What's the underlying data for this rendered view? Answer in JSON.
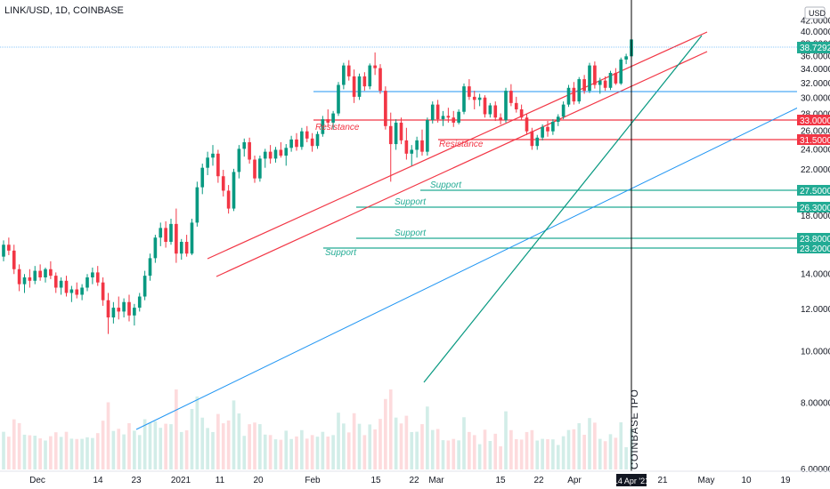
{
  "chart_data": {
    "type": "candlestick",
    "symbol": "LINK/USD, 1D, COINBASE",
    "currency_badge": "USD",
    "y_scale": "log",
    "ylim": [
      5.8,
      42.0
    ],
    "y_ticks": [
      "42.00000",
      "40.00000",
      "38.00000",
      "36.00000",
      "34.00000",
      "32.00000",
      "30.00000",
      "28.00000",
      "26.00000",
      "24.00000",
      "22.00000",
      "20.00000",
      "18.00000",
      "16.00000",
      "14.00000",
      "12.00000",
      "10.00000",
      "8.00000",
      "6.00000"
    ],
    "x_ticks": [
      "Dec",
      "14",
      "23",
      "2021",
      "11",
      "20",
      "Feb",
      "15",
      "22",
      "Mar",
      "15",
      "22",
      "Apr",
      "14 Apr '21",
      "21",
      "May",
      "10",
      "19"
    ],
    "current_price": "38.72925",
    "levels": [
      {
        "label": "33.00000",
        "color": "#f23645",
        "kind": "resistance"
      },
      {
        "label": "31.50000",
        "color": "#f23645",
        "kind": "resistance"
      },
      {
        "label": "27.50000",
        "color": "#22ab94",
        "kind": "support"
      },
      {
        "label": "26.30000",
        "color": "#22ab94",
        "kind": "support"
      },
      {
        "label": "23.80000",
        "color": "#22ab94",
        "kind": "support"
      },
      {
        "label": "23.20000",
        "color": "#22ab94",
        "kind": "support"
      }
    ],
    "annotations": [
      {
        "text": "Resistance",
        "color": "#f23645"
      },
      {
        "text": "Resistance",
        "color": "#f23645"
      },
      {
        "text": "Support",
        "color": "#22ab94"
      },
      {
        "text": "Support",
        "color": "#22ab94"
      },
      {
        "text": "Support",
        "color": "#22ab94"
      },
      {
        "text": "Support",
        "color": "#22ab94"
      }
    ],
    "event_label": "COINBASE IPO",
    "candles": [
      {
        "o": 15.1,
        "h": 16.2,
        "l": 14.8,
        "c": 15.9
      },
      {
        "o": 15.9,
        "h": 16.4,
        "l": 15.2,
        "c": 15.5
      },
      {
        "o": 15.5,
        "h": 15.9,
        "l": 14.0,
        "c": 14.3
      },
      {
        "o": 14.3,
        "h": 14.6,
        "l": 13.0,
        "c": 13.4
      },
      {
        "o": 13.4,
        "h": 14.0,
        "l": 12.9,
        "c": 13.8
      },
      {
        "o": 13.8,
        "h": 14.3,
        "l": 13.2,
        "c": 13.6
      },
      {
        "o": 13.6,
        "h": 14.5,
        "l": 13.4,
        "c": 14.2
      },
      {
        "o": 14.2,
        "h": 14.6,
        "l": 13.6,
        "c": 13.8
      },
      {
        "o": 13.8,
        "h": 14.4,
        "l": 13.5,
        "c": 14.3
      },
      {
        "o": 14.3,
        "h": 14.8,
        "l": 13.7,
        "c": 13.9
      },
      {
        "o": 13.9,
        "h": 14.1,
        "l": 12.9,
        "c": 13.2
      },
      {
        "o": 13.2,
        "h": 13.8,
        "l": 12.8,
        "c": 13.6
      },
      {
        "o": 13.6,
        "h": 13.9,
        "l": 12.7,
        "c": 12.9
      },
      {
        "o": 12.9,
        "h": 13.3,
        "l": 12.4,
        "c": 13.1
      },
      {
        "o": 13.1,
        "h": 13.5,
        "l": 12.6,
        "c": 12.8
      },
      {
        "o": 12.8,
        "h": 13.4,
        "l": 12.5,
        "c": 13.2
      },
      {
        "o": 13.2,
        "h": 14.0,
        "l": 13.0,
        "c": 13.8
      },
      {
        "o": 13.8,
        "h": 14.4,
        "l": 13.4,
        "c": 14.1
      },
      {
        "o": 14.1,
        "h": 14.5,
        "l": 13.3,
        "c": 13.5
      },
      {
        "o": 13.5,
        "h": 13.8,
        "l": 12.2,
        "c": 12.5
      },
      {
        "o": 12.5,
        "h": 12.9,
        "l": 10.8,
        "c": 11.6
      },
      {
        "o": 11.6,
        "h": 12.4,
        "l": 11.3,
        "c": 12.1
      },
      {
        "o": 12.1,
        "h": 12.7,
        "l": 11.5,
        "c": 11.9
      },
      {
        "o": 11.9,
        "h": 12.6,
        "l": 11.6,
        "c": 12.4
      },
      {
        "o": 12.4,
        "h": 12.8,
        "l": 11.4,
        "c": 11.7
      },
      {
        "o": 11.7,
        "h": 12.3,
        "l": 11.2,
        "c": 12.1
      },
      {
        "o": 12.1,
        "h": 12.9,
        "l": 11.9,
        "c": 12.7
      },
      {
        "o": 12.7,
        "h": 14.2,
        "l": 12.5,
        "c": 13.9
      },
      {
        "o": 13.9,
        "h": 15.3,
        "l": 13.6,
        "c": 15.0
      },
      {
        "o": 15.0,
        "h": 16.6,
        "l": 14.7,
        "c": 16.4
      },
      {
        "o": 16.4,
        "h": 17.5,
        "l": 15.8,
        "c": 17.1
      },
      {
        "o": 17.1,
        "h": 17.6,
        "l": 15.7,
        "c": 16.1
      },
      {
        "o": 16.1,
        "h": 17.8,
        "l": 15.9,
        "c": 17.4
      },
      {
        "o": 17.4,
        "h": 18.6,
        "l": 14.7,
        "c": 15.3
      },
      {
        "o": 15.3,
        "h": 16.3,
        "l": 14.9,
        "c": 16.1
      },
      {
        "o": 16.1,
        "h": 16.6,
        "l": 15.1,
        "c": 15.3
      },
      {
        "o": 15.3,
        "h": 17.8,
        "l": 15.2,
        "c": 17.5
      },
      {
        "o": 17.5,
        "h": 20.9,
        "l": 17.2,
        "c": 20.4
      },
      {
        "o": 20.4,
        "h": 22.6,
        "l": 19.8,
        "c": 22.2
      },
      {
        "o": 22.2,
        "h": 23.8,
        "l": 21.5,
        "c": 23.2
      },
      {
        "o": 23.2,
        "h": 24.5,
        "l": 22.4,
        "c": 23.6
      },
      {
        "o": 23.6,
        "h": 24.0,
        "l": 20.8,
        "c": 21.4
      },
      {
        "o": 21.4,
        "h": 22.0,
        "l": 19.6,
        "c": 20.1
      },
      {
        "o": 20.1,
        "h": 20.6,
        "l": 18.2,
        "c": 18.6
      },
      {
        "o": 18.6,
        "h": 22.1,
        "l": 18.4,
        "c": 21.8
      },
      {
        "o": 21.8,
        "h": 24.5,
        "l": 21.2,
        "c": 24.1
      },
      {
        "o": 24.1,
        "h": 25.2,
        "l": 23.3,
        "c": 24.8
      },
      {
        "o": 24.8,
        "h": 25.3,
        "l": 22.6,
        "c": 23.0
      },
      {
        "o": 23.0,
        "h": 23.4,
        "l": 20.8,
        "c": 21.2
      },
      {
        "o": 21.2,
        "h": 23.4,
        "l": 20.9,
        "c": 23.1
      },
      {
        "o": 23.1,
        "h": 24.1,
        "l": 22.2,
        "c": 23.8
      },
      {
        "o": 23.8,
        "h": 24.5,
        "l": 22.6,
        "c": 23.1
      },
      {
        "o": 23.1,
        "h": 24.3,
        "l": 22.7,
        "c": 24.0
      },
      {
        "o": 24.0,
        "h": 24.8,
        "l": 23.2,
        "c": 23.4
      },
      {
        "o": 23.4,
        "h": 24.6,
        "l": 22.4,
        "c": 24.2
      },
      {
        "o": 24.2,
        "h": 25.5,
        "l": 23.8,
        "c": 25.1
      },
      {
        "o": 25.1,
        "h": 25.8,
        "l": 23.9,
        "c": 24.3
      },
      {
        "o": 24.3,
        "h": 26.4,
        "l": 24.0,
        "c": 26.0
      },
      {
        "o": 26.0,
        "h": 26.6,
        "l": 24.8,
        "c": 25.2
      },
      {
        "o": 25.2,
        "h": 25.8,
        "l": 23.8,
        "c": 24.4
      },
      {
        "o": 24.4,
        "h": 26.0,
        "l": 24.1,
        "c": 25.7
      },
      {
        "o": 25.7,
        "h": 27.8,
        "l": 25.4,
        "c": 27.4
      },
      {
        "o": 27.4,
        "h": 28.6,
        "l": 26.5,
        "c": 27.0
      },
      {
        "o": 27.0,
        "h": 28.4,
        "l": 26.2,
        "c": 28.1
      },
      {
        "o": 28.1,
        "h": 32.2,
        "l": 27.8,
        "c": 31.8
      },
      {
        "o": 31.8,
        "h": 35.0,
        "l": 31.2,
        "c": 34.6
      },
      {
        "o": 34.6,
        "h": 35.4,
        "l": 32.4,
        "c": 33.0
      },
      {
        "o": 33.0,
        "h": 34.0,
        "l": 29.4,
        "c": 30.2
      },
      {
        "o": 30.2,
        "h": 33.4,
        "l": 29.8,
        "c": 33.0
      },
      {
        "o": 33.0,
        "h": 33.6,
        "l": 31.0,
        "c": 31.6
      },
      {
        "o": 31.6,
        "h": 34.9,
        "l": 31.2,
        "c": 34.6
      },
      {
        "o": 34.6,
        "h": 36.6,
        "l": 33.2,
        "c": 34.2
      },
      {
        "o": 34.2,
        "h": 34.8,
        "l": 30.6,
        "c": 31.0
      },
      {
        "o": 31.0,
        "h": 31.6,
        "l": 26.2,
        "c": 26.6
      },
      {
        "o": 26.6,
        "h": 28.2,
        "l": 20.9,
        "c": 24.6
      },
      {
        "o": 24.6,
        "h": 27.4,
        "l": 24.0,
        "c": 27.0
      },
      {
        "o": 27.0,
        "h": 27.6,
        "l": 24.6,
        "c": 25.0
      },
      {
        "o": 25.0,
        "h": 26.4,
        "l": 23.0,
        "c": 23.6
      },
      {
        "o": 23.6,
        "h": 24.5,
        "l": 22.4,
        "c": 24.0
      },
      {
        "o": 24.0,
        "h": 25.4,
        "l": 23.2,
        "c": 25.0
      },
      {
        "o": 25.0,
        "h": 26.2,
        "l": 23.4,
        "c": 23.8
      },
      {
        "o": 23.8,
        "h": 27.6,
        "l": 23.4,
        "c": 27.3
      },
      {
        "o": 27.3,
        "h": 29.6,
        "l": 26.9,
        "c": 29.2
      },
      {
        "o": 29.2,
        "h": 29.8,
        "l": 27.0,
        "c": 27.4
      },
      {
        "o": 27.4,
        "h": 28.4,
        "l": 26.6,
        "c": 27.8
      },
      {
        "o": 27.8,
        "h": 28.8,
        "l": 27.0,
        "c": 27.6
      },
      {
        "o": 27.6,
        "h": 28.4,
        "l": 26.5,
        "c": 27.0
      },
      {
        "o": 27.0,
        "h": 28.6,
        "l": 26.8,
        "c": 28.3
      },
      {
        "o": 28.3,
        "h": 32.0,
        "l": 28.0,
        "c": 31.6
      },
      {
        "o": 31.6,
        "h": 32.6,
        "l": 29.8,
        "c": 30.2
      },
      {
        "o": 30.2,
        "h": 31.0,
        "l": 28.6,
        "c": 29.8
      },
      {
        "o": 29.8,
        "h": 30.6,
        "l": 29.0,
        "c": 30.1
      },
      {
        "o": 30.1,
        "h": 30.4,
        "l": 27.6,
        "c": 28.0
      },
      {
        "o": 28.0,
        "h": 29.4,
        "l": 27.6,
        "c": 29.1
      },
      {
        "o": 29.1,
        "h": 29.6,
        "l": 27.2,
        "c": 27.6
      },
      {
        "o": 27.6,
        "h": 28.1,
        "l": 26.8,
        "c": 27.3
      },
      {
        "o": 27.3,
        "h": 31.4,
        "l": 27.0,
        "c": 31.0
      },
      {
        "o": 31.0,
        "h": 31.9,
        "l": 29.0,
        "c": 29.4
      },
      {
        "o": 29.4,
        "h": 30.2,
        "l": 28.2,
        "c": 28.6
      },
      {
        "o": 28.6,
        "h": 29.2,
        "l": 27.3,
        "c": 27.6
      },
      {
        "o": 27.6,
        "h": 28.0,
        "l": 25.6,
        "c": 26.0
      },
      {
        "o": 26.0,
        "h": 26.4,
        "l": 24.0,
        "c": 24.4
      },
      {
        "o": 24.4,
        "h": 25.6,
        "l": 24.0,
        "c": 25.3
      },
      {
        "o": 25.3,
        "h": 26.8,
        "l": 25.0,
        "c": 26.5
      },
      {
        "o": 26.5,
        "h": 27.2,
        "l": 25.4,
        "c": 26.0
      },
      {
        "o": 26.0,
        "h": 27.4,
        "l": 25.6,
        "c": 27.1
      },
      {
        "o": 27.1,
        "h": 28.0,
        "l": 26.6,
        "c": 27.7
      },
      {
        "o": 27.7,
        "h": 29.6,
        "l": 27.4,
        "c": 29.2
      },
      {
        "o": 29.2,
        "h": 31.8,
        "l": 28.9,
        "c": 31.4
      },
      {
        "o": 31.4,
        "h": 32.2,
        "l": 29.2,
        "c": 29.6
      },
      {
        "o": 29.6,
        "h": 32.9,
        "l": 29.3,
        "c": 32.6
      },
      {
        "o": 32.6,
        "h": 33.2,
        "l": 30.6,
        "c": 31.0
      },
      {
        "o": 31.0,
        "h": 35.0,
        "l": 30.7,
        "c": 34.6
      },
      {
        "o": 34.6,
        "h": 35.2,
        "l": 31.3,
        "c": 31.8
      },
      {
        "o": 31.8,
        "h": 32.8,
        "l": 30.6,
        "c": 32.4
      },
      {
        "o": 32.4,
        "h": 33.0,
        "l": 31.0,
        "c": 31.4
      },
      {
        "o": 31.4,
        "h": 33.8,
        "l": 31.1,
        "c": 33.5
      },
      {
        "o": 33.5,
        "h": 34.2,
        "l": 31.8,
        "c": 32.0
      },
      {
        "o": 32.0,
        "h": 35.8,
        "l": 31.8,
        "c": 35.5
      },
      {
        "o": 35.5,
        "h": 36.4,
        "l": 34.8,
        "c": 36.0
      },
      {
        "o": 36.0,
        "h": 39.6,
        "l": 35.8,
        "c": 38.73
      }
    ]
  }
}
